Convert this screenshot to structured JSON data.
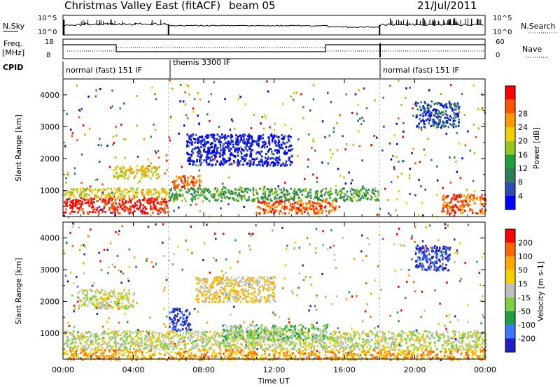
{
  "header": {
    "title": "Christmas Valley East (fitACF)",
    "beam": "beam 05",
    "date": "21/Jul/2011"
  },
  "top_panels": {
    "nsky": {
      "label": "N.Sky",
      "ticks": [
        "10^5",
        "10^0"
      ]
    },
    "nsearch": {
      "label": "N.Search",
      "ticks": [
        "10^5",
        "10^0"
      ]
    },
    "freq": {
      "label_line1": "Freq.",
      "label_line2": "[MHz]",
      "ticks": [
        "18",
        "8"
      ]
    },
    "nave": {
      "label": "Nave",
      "ticks": [
        "60",
        "0"
      ]
    },
    "cpid": {
      "label": "CPID",
      "segments": [
        {
          "label": "normal (fast) 151 IF",
          "start_hour": 0,
          "end_hour": 6
        },
        {
          "label": "themis 3300 IF",
          "start_hour": 6,
          "end_hour": 18
        },
        {
          "label": "normal (fast) 151 IF",
          "start_hour": 18,
          "end_hour": 24
        }
      ]
    }
  },
  "colors": {
    "power": [
      "#0000ff",
      "#2a4fb0",
      "#2f7e5a",
      "#1fa03a",
      "#98c820",
      "#f0d000",
      "#ff9a00",
      "#ff5500",
      "#ff0000"
    ],
    "velocity": [
      "#2020c8",
      "#3a78ff",
      "#1f9e44",
      "#7ad040",
      "#bfbfbf",
      "#f5d000",
      "#ffa800",
      "#ff6600",
      "#ff0000"
    ]
  },
  "chart_data": [
    {
      "type": "heatmap",
      "name": "power",
      "xlabel": "",
      "ylabel": "Slant Range [km]",
      "xlim": [
        0,
        24
      ],
      "ylim": [
        180,
        4500
      ],
      "yticks": [
        1000,
        2000,
        3000,
        4000
      ],
      "colorbar": {
        "label": "Power [dB]",
        "ticks": [
          "4",
          "8",
          "12",
          "16",
          "20",
          "24",
          "28"
        ]
      },
      "features": [
        {
          "desc_hours": [
            0.0,
            6.0
          ],
          "range_km": [
            300,
            800
          ],
          "level": 8
        },
        {
          "desc_hours": [
            0.0,
            6.0
          ],
          "range_km": [
            800,
            1100
          ],
          "level": 5
        },
        {
          "desc_hours": [
            2.8,
            5.5
          ],
          "range_km": [
            1400,
            1800
          ],
          "level": 5
        },
        {
          "desc_hours": [
            6.2,
            7.8
          ],
          "range_km": [
            1100,
            1500
          ],
          "level": 7
        },
        {
          "desc_hours": [
            6.0,
            18.0
          ],
          "range_km": [
            700,
            1100
          ],
          "level": 3
        },
        {
          "desc_hours": [
            11.0,
            15.5
          ],
          "range_km": [
            300,
            700
          ],
          "level": 7
        },
        {
          "desc_hours": [
            21.5,
            24.0
          ],
          "range_km": [
            300,
            900
          ],
          "level": 7
        },
        {
          "desc_hours": [
            7.0,
            13.0
          ],
          "range_km": [
            1800,
            2800
          ],
          "level": 0
        },
        {
          "desc_hours": [
            20.0,
            22.5
          ],
          "range_km": [
            3000,
            3800
          ],
          "level": 1
        }
      ]
    },
    {
      "type": "heatmap",
      "name": "velocity",
      "xlabel": "Time UT",
      "ylabel": "Slant Range [km]",
      "xlim": [
        0,
        24
      ],
      "ylim": [
        180,
        4500
      ],
      "yticks": [
        1000,
        2000,
        3000,
        4000
      ],
      "xticks": [
        "00:00",
        "04:00",
        "08:00",
        "12:00",
        "16:00",
        "20:00",
        "00:00"
      ],
      "colorbar": {
        "label": "Velocity [m s-1]",
        "ticks": [
          "200",
          "100",
          "50",
          "15",
          "-15",
          "-50",
          "-100",
          "-200"
        ]
      },
      "features": [
        {
          "desc_hours": [
            0.0,
            24.0
          ],
          "range_km": [
            500,
            1100
          ],
          "level": 4
        },
        {
          "desc_hours": [
            0.0,
            24.0
          ],
          "range_km": [
            180,
            500
          ],
          "level": 6
        },
        {
          "desc_hours": [
            6.0,
            7.2
          ],
          "range_km": [
            1100,
            1800
          ],
          "level": 0
        },
        {
          "desc_hours": [
            9.0,
            15.0
          ],
          "range_km": [
            800,
            1300
          ],
          "level": 3
        },
        {
          "desc_hours": [
            0.8,
            4.0
          ],
          "range_km": [
            1800,
            2400
          ],
          "level": 4
        },
        {
          "desc_hours": [
            7.5,
            12.0
          ],
          "range_km": [
            2000,
            2800
          ],
          "level": 5
        },
        {
          "desc_hours": [
            20.0,
            22.0
          ],
          "range_km": [
            3000,
            3800
          ],
          "level": 0
        }
      ]
    }
  ]
}
